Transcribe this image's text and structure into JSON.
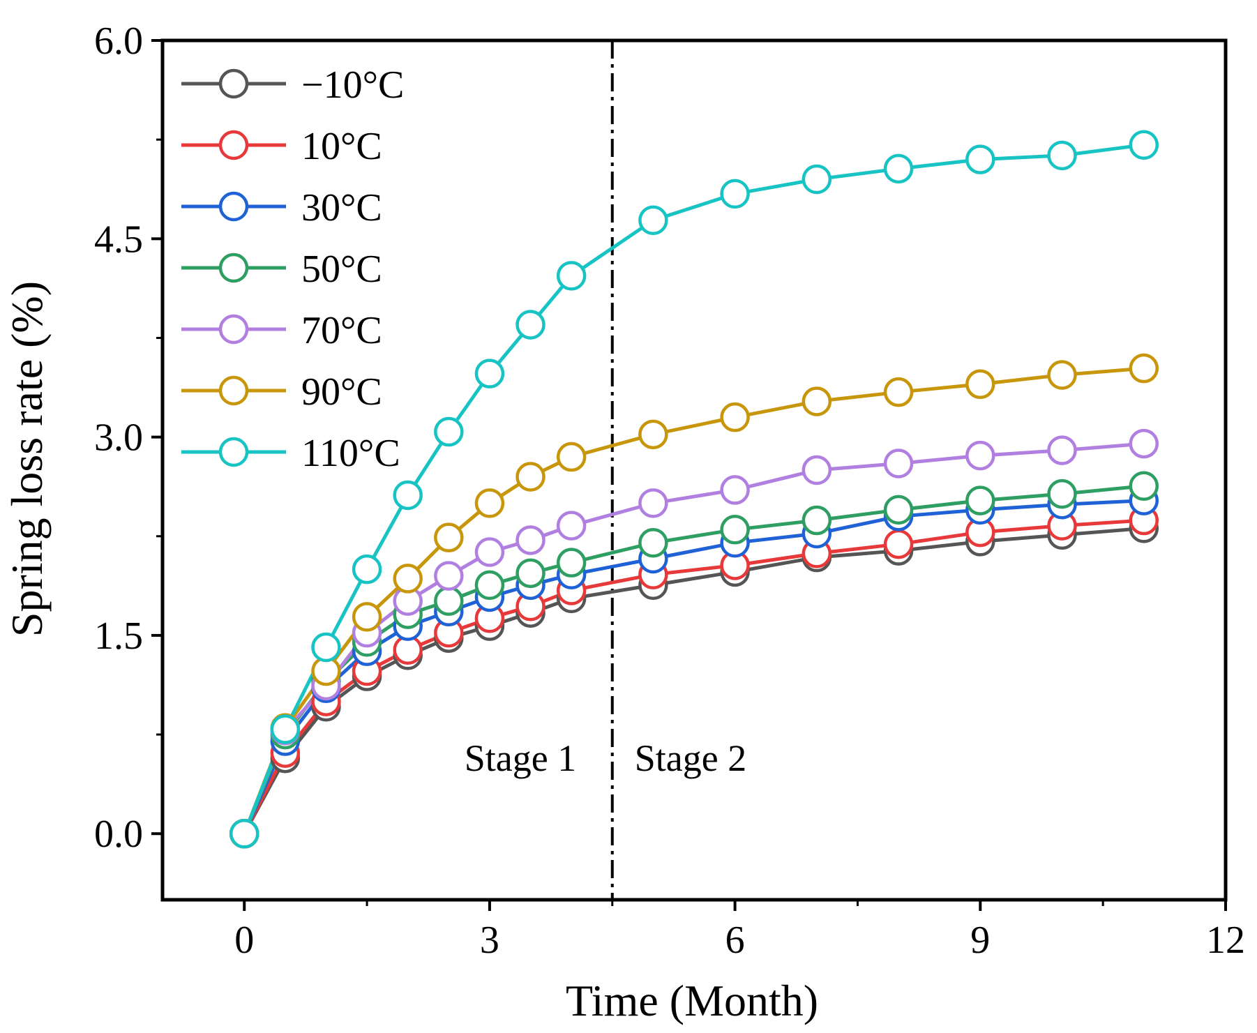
{
  "chart_data": {
    "type": "line",
    "xlabel": "Time (Month)",
    "ylabel": "Spring loss rate (%)",
    "xlim": [
      -1,
      12
    ],
    "ylim": [
      -0.5,
      6.0
    ],
    "xticks": [
      0,
      3,
      6,
      9,
      12
    ],
    "yticks": [
      0.0,
      1.5,
      3.0,
      4.5,
      6.0
    ],
    "ytick_labels": [
      "0.0",
      "1.5",
      "3.0",
      "4.5",
      "6.0"
    ],
    "xtick_labels": [
      "0",
      "3",
      "6",
      "9",
      "12"
    ],
    "legend_position": "top-left",
    "x": [
      0,
      0.5,
      1,
      1.5,
      2,
      2.5,
      3,
      3.5,
      4,
      5,
      6,
      7,
      8,
      9,
      10,
      11
    ],
    "series": [
      {
        "name": "−10°C",
        "color": "#555555",
        "values": [
          0,
          0.57,
          0.96,
          1.19,
          1.35,
          1.48,
          1.57,
          1.67,
          1.78,
          1.88,
          1.98,
          2.09,
          2.14,
          2.21,
          2.26,
          2.31
        ]
      },
      {
        "name": "10°C",
        "color": "#e8393a",
        "values": [
          0,
          0.61,
          1.0,
          1.23,
          1.39,
          1.52,
          1.63,
          1.72,
          1.84,
          1.96,
          2.03,
          2.12,
          2.19,
          2.28,
          2.33,
          2.37
        ]
      },
      {
        "name": "30°C",
        "color": "#1f62d6",
        "values": [
          0,
          0.7,
          1.1,
          1.38,
          1.57,
          1.68,
          1.79,
          1.88,
          1.96,
          2.08,
          2.2,
          2.27,
          2.4,
          2.45,
          2.49,
          2.52
        ]
      },
      {
        "name": "50°C",
        "color": "#2e9e62",
        "values": [
          0,
          0.75,
          1.15,
          1.45,
          1.66,
          1.76,
          1.88,
          1.97,
          2.05,
          2.2,
          2.3,
          2.37,
          2.45,
          2.52,
          2.57,
          2.63
        ]
      },
      {
        "name": "70°C",
        "color": "#b07fe0",
        "values": [
          0,
          0.78,
          1.12,
          1.52,
          1.76,
          1.95,
          2.13,
          2.22,
          2.33,
          2.5,
          2.6,
          2.75,
          2.8,
          2.86,
          2.9,
          2.95
        ]
      },
      {
        "name": "90°C",
        "color": "#c8960a",
        "values": [
          0,
          0.8,
          1.23,
          1.64,
          1.93,
          2.24,
          2.5,
          2.7,
          2.85,
          3.02,
          3.15,
          3.27,
          3.34,
          3.4,
          3.47,
          3.52
        ]
      },
      {
        "name": "110°C",
        "color": "#18c3c3",
        "values": [
          0,
          0.79,
          1.41,
          2.0,
          2.56,
          3.04,
          3.48,
          3.85,
          4.22,
          4.64,
          4.84,
          4.95,
          5.03,
          5.1,
          5.13,
          5.21
        ]
      }
    ],
    "divider_x": 4.5,
    "annotations": [
      "Stage 1",
      "Stage 2"
    ]
  }
}
